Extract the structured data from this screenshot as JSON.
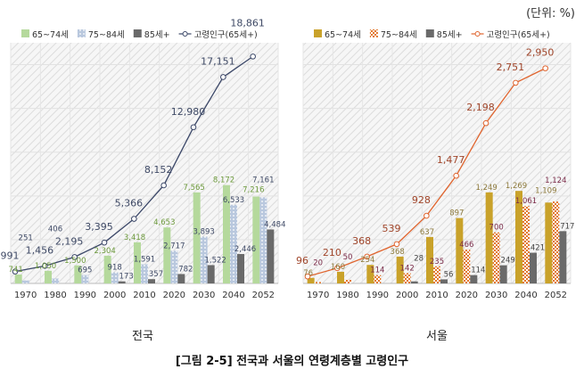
{
  "unit": "(단위: %)",
  "caption": "[그림 2-5] 전국과 서울의 연령계층별 고령인구",
  "chart_data": [
    {
      "type": "bar",
      "title": "전국",
      "categories": [
        "1970",
        "1980",
        "1990",
        "2000",
        "2010",
        "2020",
        "2030",
        "2040",
        "2052"
      ],
      "ylim": [
        0,
        20000
      ],
      "grid": true,
      "legend": "top",
      "series": [
        {
          "name": "65~74세",
          "type": "bar",
          "color": "#b5d99c",
          "label_color": "#6d9a3c",
          "values": [
            741,
            1050,
            1500,
            2304,
            3418,
            4653,
            7565,
            8172,
            7216
          ]
        },
        {
          "name": "75~84세",
          "type": "bar",
          "color": "#b9c8de",
          "label_color": "#3f4a66",
          "values": [
            251,
            406,
            695,
            918,
            1591,
            2717,
            3893,
            6533,
            7161
          ]
        },
        {
          "name": "85세+",
          "type": "bar",
          "color": "#6a6a6a",
          "label_color": "#3f4a66",
          "values": [
            null,
            null,
            null,
            173,
            357,
            782,
            1522,
            2446,
            4484
          ]
        },
        {
          "name": "고령인구(65세+)",
          "type": "line",
          "color": "#3b4768",
          "label_color": "#3f4a66",
          "values": [
            991,
            1456,
            2195,
            3395,
            5366,
            8152,
            12980,
            17151,
            18861
          ]
        }
      ]
    },
    {
      "type": "bar",
      "title": "서울",
      "categories": [
        "1970",
        "1980",
        "1990",
        "2000",
        "2010",
        "2020",
        "2030",
        "2040",
        "2052"
      ],
      "ylim": [
        0,
        3300
      ],
      "grid": true,
      "legend": "top",
      "series": [
        {
          "name": "65~74세",
          "type": "bar",
          "color": "#c9a22a",
          "label_color": "#8d7a3c",
          "values": [
            76,
            160,
            254,
            368,
            637,
            897,
            1249,
            1269,
            1109
          ]
        },
        {
          "name": "75~84세",
          "type": "bar",
          "color": "#e2792f",
          "label_color": "#7a2a48",
          "values": [
            20,
            50,
            114,
            142,
            235,
            466,
            700,
            1061,
            1124
          ]
        },
        {
          "name": "85세+",
          "type": "bar",
          "color": "#6a6a6a",
          "label_color": "#444444",
          "values": [
            null,
            null,
            null,
            28,
            56,
            114,
            249,
            421,
            717
          ]
        },
        {
          "name": "고령인구(65세+)",
          "type": "line",
          "color": "#e0652f",
          "label_color": "#a0452a",
          "values": [
            96,
            210,
            368,
            539,
            928,
            1477,
            2198,
            2751,
            2950
          ]
        }
      ]
    }
  ]
}
